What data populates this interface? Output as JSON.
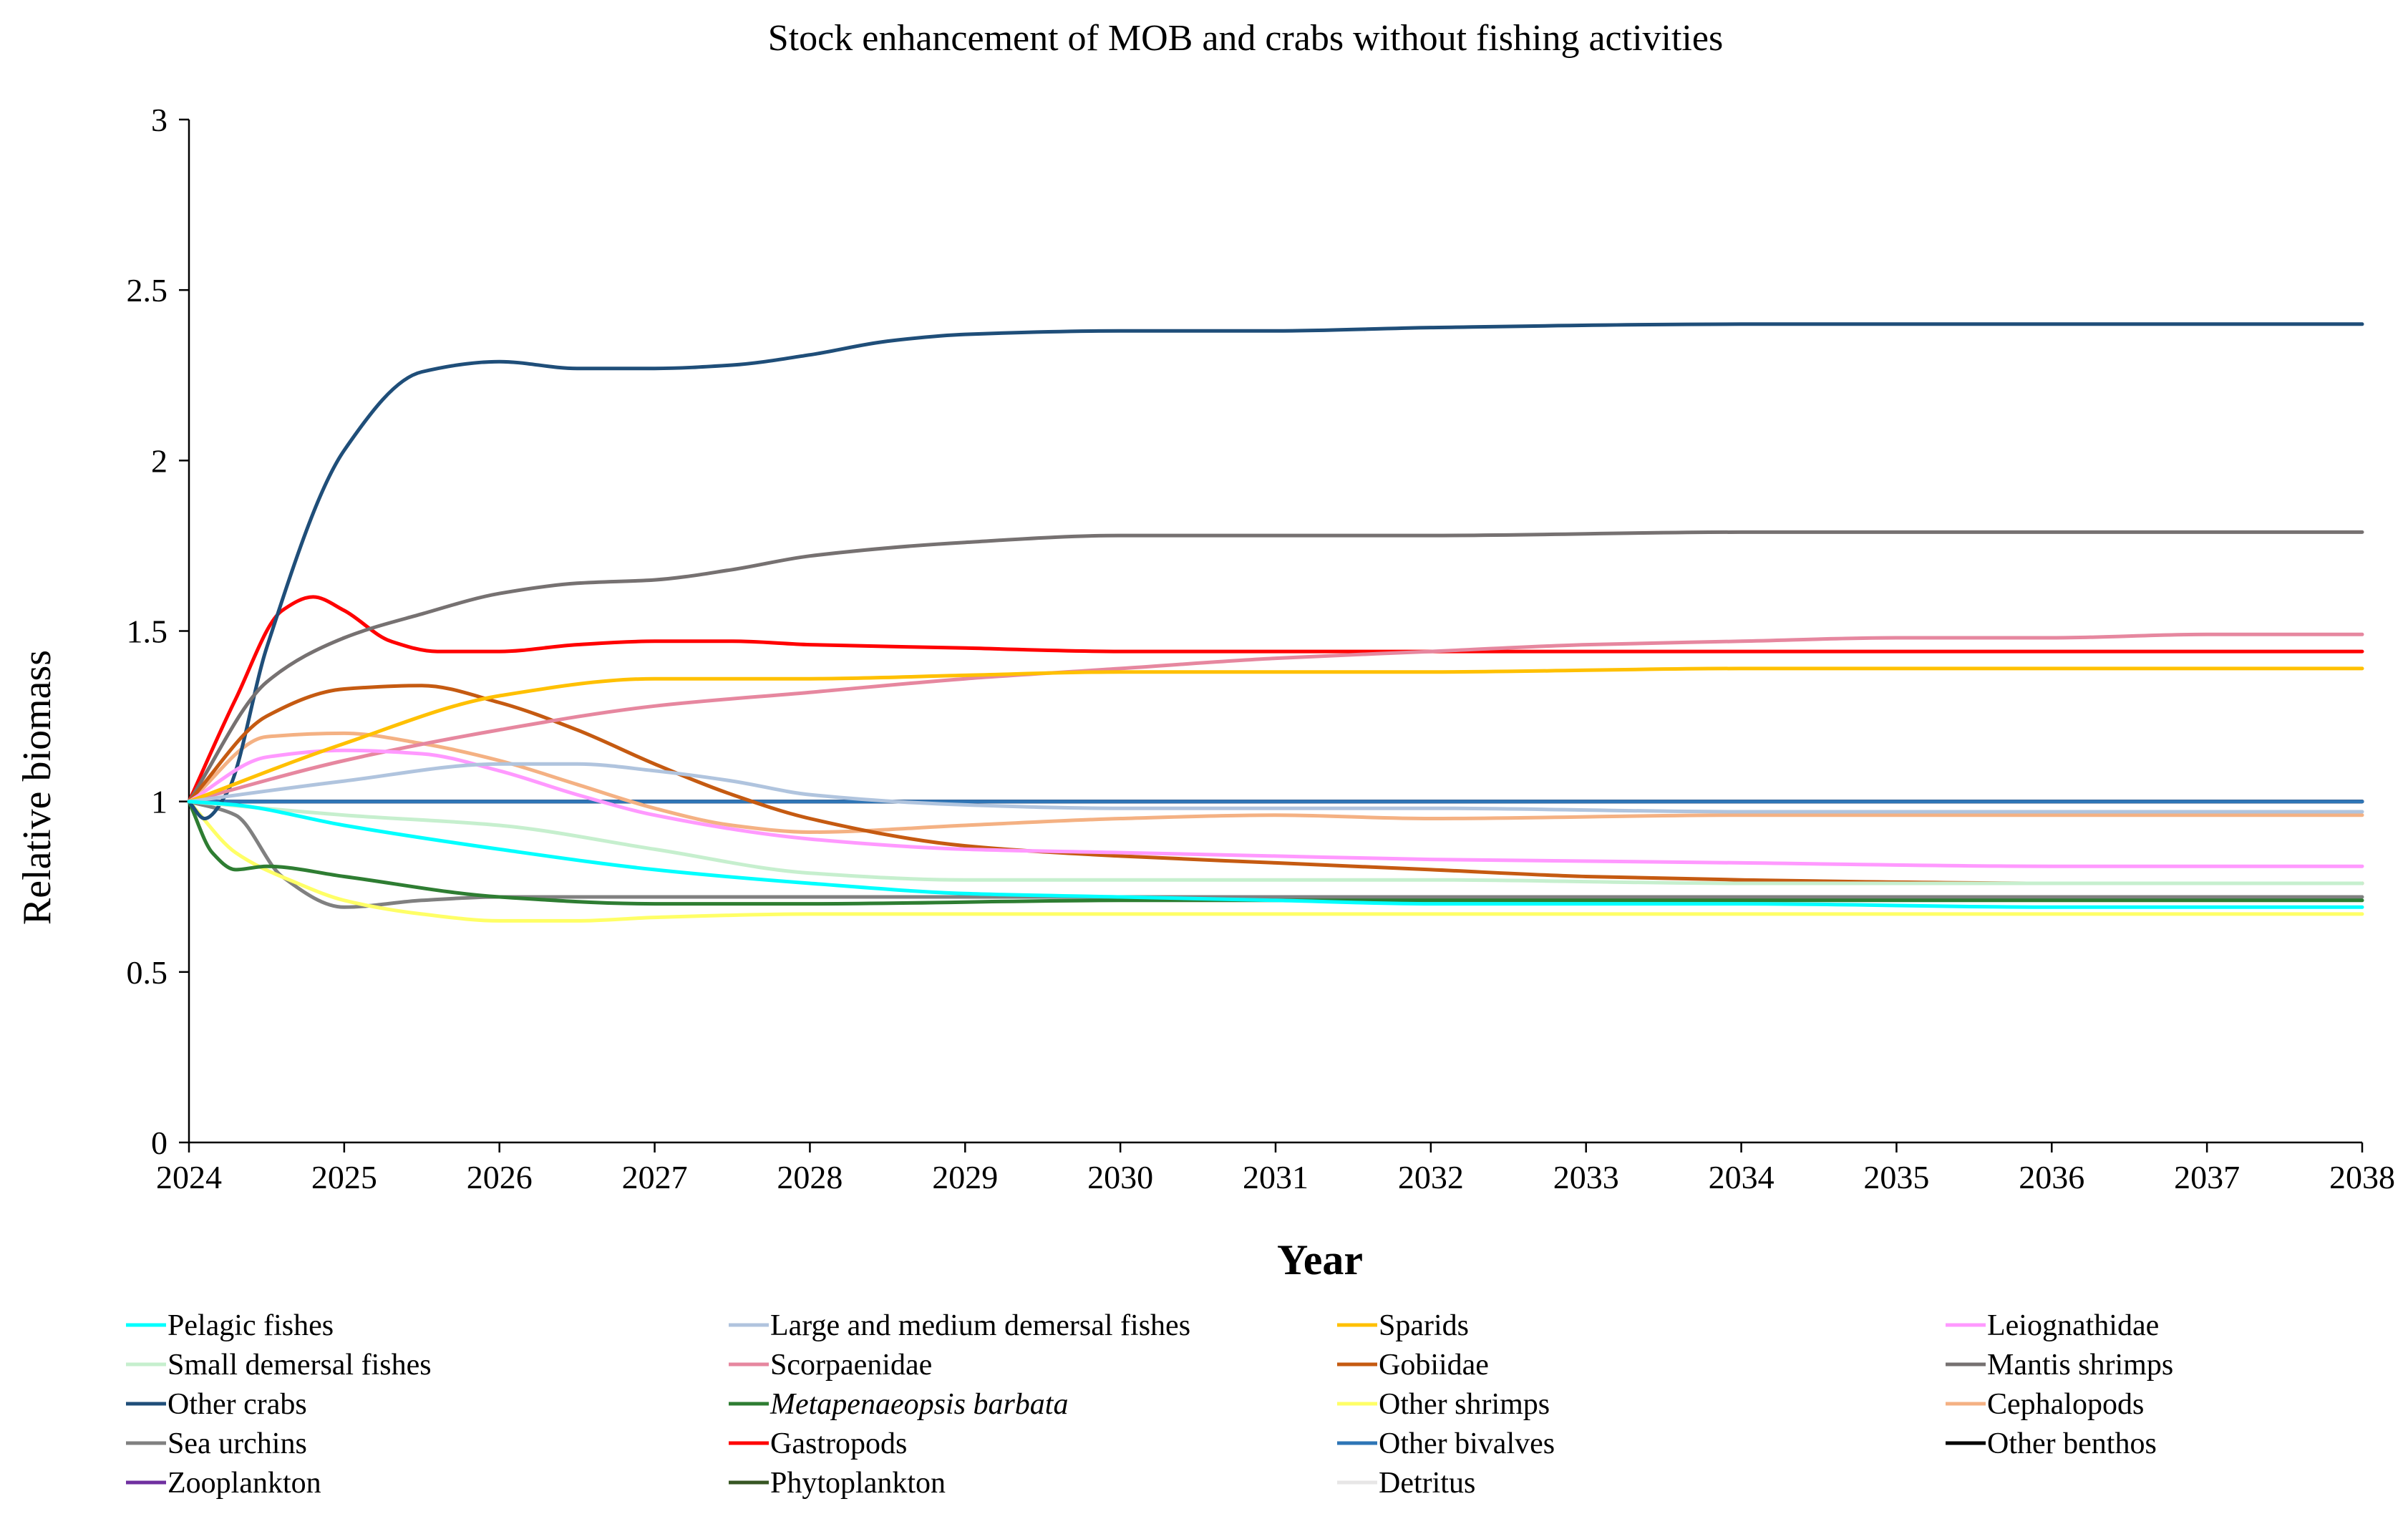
{
  "chart_data": {
    "type": "line",
    "title": "Stock enhancement of MOB and crabs without fishing activities",
    "xlabel": "Year",
    "ylabel": "Relative biomass",
    "xlim": [
      2024,
      2038
    ],
    "ylim": [
      0,
      3
    ],
    "xticks": [
      "2024",
      "2025",
      "2026",
      "2027",
      "2028",
      "2029",
      "2030",
      "2031",
      "2032",
      "2033",
      "2034",
      "2035",
      "2036",
      "2037",
      "2038"
    ],
    "yticks": [
      "0",
      "0.5",
      "1",
      "1.5",
      "2",
      "2.5",
      "3"
    ],
    "grid": false,
    "legend_position": "bottom",
    "series": [
      {
        "name": "Pelagic fishes",
        "color": "#00FFFF",
        "italic": false,
        "x": [
          2024,
          2024.3,
          2025,
          2026,
          2027,
          2028,
          2029,
          2030,
          2031,
          2032,
          2034,
          2036,
          2038
        ],
        "y": [
          1.0,
          0.99,
          0.93,
          0.86,
          0.8,
          0.76,
          0.73,
          0.72,
          0.71,
          0.7,
          0.7,
          0.69,
          0.69
        ]
      },
      {
        "name": "Large and medium demersal fishes",
        "color": "#B0C4DE",
        "italic": false,
        "x": [
          2024,
          2025,
          2026,
          2026.5,
          2027,
          2027.5,
          2028,
          2029,
          2030,
          2032,
          2034,
          2036,
          2038
        ],
        "y": [
          1.0,
          1.06,
          1.11,
          1.11,
          1.09,
          1.06,
          1.02,
          0.99,
          0.98,
          0.98,
          0.97,
          0.97,
          0.97
        ]
      },
      {
        "name": "Sparids",
        "color": "#FFC000",
        "italic": false,
        "x": [
          2024,
          2025,
          2026,
          2027,
          2028,
          2029,
          2030,
          2031,
          2032,
          2034,
          2036,
          2038
        ],
        "y": [
          1.0,
          1.17,
          1.31,
          1.36,
          1.36,
          1.37,
          1.38,
          1.38,
          1.38,
          1.39,
          1.39,
          1.39
        ]
      },
      {
        "name": "Leiognathidae",
        "color": "#FF99FF",
        "italic": false,
        "x": [
          2024,
          2024.5,
          2025,
          2025.5,
          2026,
          2026.5,
          2027,
          2028,
          2029,
          2030,
          2031,
          2032,
          2034,
          2036,
          2038
        ],
        "y": [
          1.0,
          1.13,
          1.15,
          1.14,
          1.09,
          1.02,
          0.96,
          0.89,
          0.86,
          0.85,
          0.84,
          0.83,
          0.82,
          0.81,
          0.81
        ]
      },
      {
        "name": "Small demersal fishes",
        "color": "#C6EFCE",
        "italic": false,
        "x": [
          2024,
          2025,
          2026,
          2027,
          2028,
          2029,
          2030,
          2032,
          2034,
          2036,
          2038
        ],
        "y": [
          1.0,
          0.96,
          0.93,
          0.86,
          0.79,
          0.77,
          0.77,
          0.77,
          0.76,
          0.76,
          0.76
        ]
      },
      {
        "name": "Scorpaenidae",
        "color": "#E6879F",
        "italic": false,
        "x": [
          2024,
          2025,
          2026,
          2027,
          2028,
          2029,
          2030,
          2031,
          2032,
          2033,
          2034,
          2035,
          2036,
          2037,
          2038
        ],
        "y": [
          1.0,
          1.12,
          1.21,
          1.28,
          1.32,
          1.36,
          1.39,
          1.42,
          1.44,
          1.46,
          1.47,
          1.48,
          1.48,
          1.49,
          1.49
        ]
      },
      {
        "name": "Gobiidae",
        "color": "#C55A11",
        "italic": false,
        "x": [
          2024,
          2024.5,
          2025,
          2025.5,
          2026,
          2026.5,
          2027,
          2027.5,
          2028,
          2029,
          2030,
          2031,
          2032,
          2033,
          2034,
          2036,
          2038
        ],
        "y": [
          1.0,
          1.25,
          1.33,
          1.34,
          1.29,
          1.21,
          1.11,
          1.02,
          0.95,
          0.87,
          0.84,
          0.82,
          0.8,
          0.78,
          0.77,
          0.76,
          0.76
        ]
      },
      {
        "name": "Mantis shrimps",
        "color": "#767171",
        "italic": false,
        "x": [
          2024,
          2024.5,
          2025,
          2025.5,
          2026,
          2026.5,
          2027,
          2027.5,
          2028,
          2029,
          2030,
          2032,
          2034,
          2036,
          2038
        ],
        "y": [
          1.0,
          1.35,
          1.48,
          1.55,
          1.61,
          1.64,
          1.65,
          1.68,
          1.72,
          1.76,
          1.78,
          1.78,
          1.79,
          1.79,
          1.79
        ]
      },
      {
        "name": "Other crabs",
        "color": "#1F4E79",
        "italic": false,
        "x": [
          2024,
          2024.1,
          2024.25,
          2024.5,
          2025,
          2025.5,
          2026,
          2026.5,
          2027,
          2027.5,
          2028,
          2028.5,
          2029,
          2030,
          2031,
          2032,
          2034,
          2036,
          2038
        ],
        "y": [
          1.0,
          0.95,
          1.03,
          1.45,
          2.03,
          2.26,
          2.29,
          2.27,
          2.27,
          2.28,
          2.31,
          2.35,
          2.37,
          2.38,
          2.38,
          2.39,
          2.4,
          2.4,
          2.4
        ]
      },
      {
        "name": "Metapenaeopsis barbata",
        "color": "#2E7D32",
        "italic": true,
        "x": [
          2024,
          2024.15,
          2024.3,
          2024.5,
          2025,
          2026,
          2027,
          2028,
          2030,
          2032,
          2034,
          2036,
          2038
        ],
        "y": [
          1.0,
          0.85,
          0.8,
          0.81,
          0.78,
          0.72,
          0.7,
          0.7,
          0.71,
          0.71,
          0.71,
          0.71,
          0.71
        ]
      },
      {
        "name": "Other shrimps",
        "color": "#FFFF66",
        "italic": false,
        "x": [
          2024,
          2024.3,
          2024.7,
          2025,
          2025.5,
          2026,
          2026.5,
          2027,
          2028,
          2030,
          2032,
          2034,
          2036,
          2038
        ],
        "y": [
          1.0,
          0.85,
          0.76,
          0.71,
          0.67,
          0.65,
          0.65,
          0.66,
          0.67,
          0.67,
          0.67,
          0.67,
          0.67,
          0.67
        ]
      },
      {
        "name": "Cephalopods",
        "color": "#F4B183",
        "italic": false,
        "x": [
          2024,
          2024.5,
          2025,
          2025.5,
          2026,
          2026.5,
          2027,
          2027.5,
          2028,
          2029,
          2030,
          2031,
          2032,
          2034,
          2036,
          2038
        ],
        "y": [
          1.0,
          1.19,
          1.2,
          1.17,
          1.12,
          1.05,
          0.98,
          0.93,
          0.91,
          0.93,
          0.95,
          0.96,
          0.95,
          0.96,
          0.96,
          0.96
        ]
      },
      {
        "name": "Sea urchins",
        "color": "#808080",
        "italic": false,
        "x": [
          2024,
          2024.3,
          2024.6,
          2025,
          2025.5,
          2026,
          2027,
          2028,
          2030,
          2032,
          2034,
          2036,
          2038
        ],
        "y": [
          1.0,
          0.96,
          0.78,
          0.69,
          0.71,
          0.72,
          0.72,
          0.72,
          0.72,
          0.72,
          0.72,
          0.72,
          0.72
        ]
      },
      {
        "name": "Gastropods",
        "color": "#FF0000",
        "italic": false,
        "x": [
          2024,
          2024.3,
          2024.6,
          2024.8,
          2025,
          2025.3,
          2025.6,
          2026,
          2026.5,
          2027,
          2027.5,
          2028,
          2029,
          2030,
          2032,
          2034,
          2036,
          2038
        ],
        "y": [
          1.0,
          1.3,
          1.56,
          1.6,
          1.56,
          1.47,
          1.44,
          1.44,
          1.46,
          1.47,
          1.47,
          1.46,
          1.45,
          1.44,
          1.44,
          1.44,
          1.44,
          1.44
        ]
      },
      {
        "name": "Other bivalves",
        "color": "#2E75B6",
        "italic": false,
        "x": [
          2024,
          2026,
          2028,
          2030,
          2032,
          2034,
          2036,
          2038
        ],
        "y": [
          1.0,
          1.0,
          1.0,
          1.0,
          1.0,
          1.0,
          1.0,
          1.0
        ]
      },
      {
        "name": "Other benthos",
        "color": "#000000",
        "italic": false,
        "x": [
          2024,
          2026,
          2028,
          2030,
          2032,
          2034,
          2036,
          2038
        ],
        "y": [
          1.0,
          1.0,
          1.0,
          1.0,
          1.0,
          1.0,
          1.0,
          1.0
        ]
      },
      {
        "name": "Zooplankton",
        "color": "#7030A0",
        "italic": false,
        "x": [
          2024,
          2026,
          2028,
          2030,
          2032,
          2034,
          2036,
          2038
        ],
        "y": [
          1.0,
          1.0,
          1.0,
          1.0,
          1.0,
          1.0,
          1.0,
          1.0
        ]
      },
      {
        "name": "Phytoplankton",
        "color": "#375623",
        "italic": false,
        "x": [
          2024,
          2026,
          2028,
          2030,
          2032,
          2034,
          2036,
          2038
        ],
        "y": [
          1.0,
          1.0,
          1.0,
          1.0,
          1.0,
          1.0,
          1.0,
          1.0
        ]
      },
      {
        "name": "Detritus",
        "color": "#E7E6E6",
        "italic": false,
        "x": [
          2024,
          2026,
          2028,
          2030,
          2032,
          2034,
          2036,
          2038
        ],
        "y": [
          1.0,
          1.0,
          1.0,
          1.0,
          1.0,
          1.0,
          1.0,
          1.0
        ]
      }
    ]
  }
}
